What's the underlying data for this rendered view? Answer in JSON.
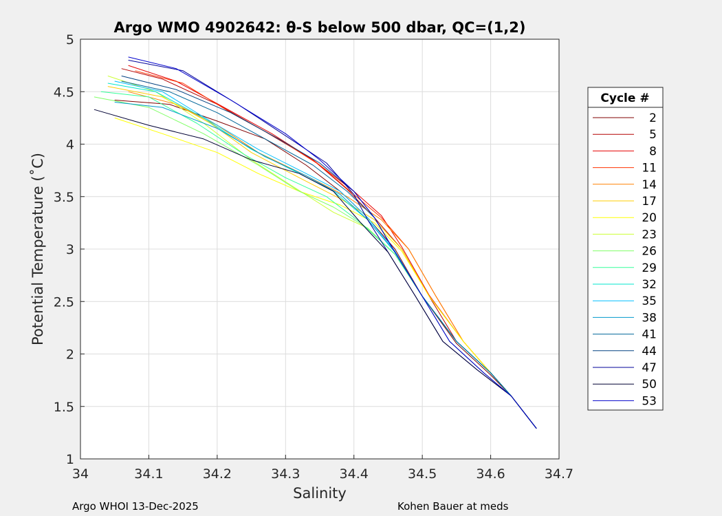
{
  "chart_data": {
    "type": "line",
    "title": "Argo WMO 4902642: θ-S below 500 dbar,  QC=(1,2)",
    "xlabel": "Salinity",
    "ylabel": "Potential Temperature (˚C)",
    "xlim": [
      34,
      34.7
    ],
    "ylim": [
      1,
      5
    ],
    "xticks": [
      "34",
      "34.1",
      "34.2",
      "34.3",
      "34.4",
      "34.5",
      "34.6",
      "34.7"
    ],
    "yticks": [
      "1",
      "1.5",
      "2",
      "2.5",
      "3",
      "3.5",
      "4",
      "4.5",
      "5"
    ],
    "grid": true,
    "legend": {
      "title": "Cycle #",
      "placement": "right",
      "entries": [
        "2",
        "5",
        "8",
        "11",
        "14",
        "17",
        "20",
        "23",
        "26",
        "29",
        "32",
        "35",
        "38",
        "41",
        "44",
        "47",
        "50",
        "53"
      ]
    },
    "series": [
      {
        "name": "2",
        "color": "#800000",
        "points": [
          [
            34.05,
            4.42
          ],
          [
            34.13,
            4.38
          ],
          [
            34.2,
            4.22
          ],
          [
            34.27,
            4.05
          ],
          [
            34.33,
            3.8
          ],
          [
            34.38,
            3.55
          ],
          [
            34.42,
            3.3
          ],
          [
            34.46,
            3.0
          ],
          [
            34.5,
            2.55
          ],
          [
            34.55,
            2.1
          ],
          [
            34.6,
            1.8
          ],
          [
            34.63,
            1.6
          ],
          [
            34.667,
            1.29
          ]
        ]
      },
      {
        "name": "5",
        "color": "#b30000",
        "points": [
          [
            34.06,
            4.72
          ],
          [
            34.12,
            4.62
          ],
          [
            34.2,
            4.38
          ],
          [
            34.27,
            4.12
          ],
          [
            34.34,
            3.85
          ],
          [
            34.39,
            3.57
          ],
          [
            34.43,
            3.3
          ],
          [
            34.47,
            3.0
          ],
          [
            34.51,
            2.55
          ],
          [
            34.55,
            2.12
          ],
          [
            34.6,
            1.82
          ],
          [
            34.63,
            1.6
          ],
          [
            34.667,
            1.29
          ]
        ]
      },
      {
        "name": "8",
        "color": "#e60000",
        "points": [
          [
            34.07,
            4.75
          ],
          [
            34.14,
            4.6
          ],
          [
            34.21,
            4.35
          ],
          [
            34.28,
            4.1
          ],
          [
            34.34,
            3.85
          ],
          [
            34.4,
            3.55
          ],
          [
            34.44,
            3.32
          ],
          [
            34.47,
            3.02
          ],
          [
            34.51,
            2.56
          ],
          [
            34.56,
            2.12
          ],
          [
            34.6,
            1.82
          ],
          [
            34.63,
            1.6
          ],
          [
            34.667,
            1.29
          ]
        ]
      },
      {
        "name": "11",
        "color": "#ff3300",
        "points": [
          [
            34.08,
            4.7
          ],
          [
            34.15,
            4.58
          ],
          [
            34.22,
            4.3
          ],
          [
            34.29,
            4.05
          ],
          [
            34.35,
            3.8
          ],
          [
            34.4,
            3.52
          ],
          [
            34.44,
            3.3
          ],
          [
            34.48,
            3.0
          ],
          [
            34.52,
            2.55
          ],
          [
            34.56,
            2.12
          ],
          [
            34.6,
            1.82
          ],
          [
            34.63,
            1.6
          ],
          [
            34.667,
            1.29
          ]
        ]
      },
      {
        "name": "14",
        "color": "#ff8000",
        "points": [
          [
            34.07,
            4.5
          ],
          [
            34.14,
            4.38
          ],
          [
            34.2,
            4.18
          ],
          [
            34.26,
            3.92
          ],
          [
            34.33,
            3.7
          ],
          [
            34.39,
            3.5
          ],
          [
            34.44,
            3.28
          ],
          [
            34.48,
            3.0
          ],
          [
            34.52,
            2.55
          ],
          [
            34.56,
            2.12
          ],
          [
            34.6,
            1.82
          ],
          [
            34.63,
            1.6
          ],
          [
            34.667,
            1.29
          ]
        ]
      },
      {
        "name": "17",
        "color": "#ffcc00",
        "points": [
          [
            34.04,
            4.55
          ],
          [
            34.12,
            4.45
          ],
          [
            34.19,
            4.2
          ],
          [
            34.25,
            3.92
          ],
          [
            34.32,
            3.68
          ],
          [
            34.38,
            3.48
          ],
          [
            34.43,
            3.28
          ],
          [
            34.47,
            3.0
          ],
          [
            34.51,
            2.55
          ],
          [
            34.56,
            2.12
          ],
          [
            34.6,
            1.82
          ],
          [
            34.63,
            1.6
          ],
          [
            34.667,
            1.29
          ]
        ]
      },
      {
        "name": "20",
        "color": "#ffff00",
        "points": [
          [
            34.05,
            4.25
          ],
          [
            34.12,
            4.1
          ],
          [
            34.2,
            3.92
          ],
          [
            34.26,
            3.72
          ],
          [
            34.32,
            3.55
          ],
          [
            34.38,
            3.42
          ],
          [
            34.43,
            3.25
          ],
          [
            34.47,
            2.98
          ],
          [
            34.51,
            2.55
          ],
          [
            34.56,
            2.12
          ],
          [
            34.6,
            1.82
          ],
          [
            34.63,
            1.6
          ],
          [
            34.667,
            1.29
          ]
        ]
      },
      {
        "name": "23",
        "color": "#ccff33",
        "points": [
          [
            34.04,
            4.65
          ],
          [
            34.11,
            4.5
          ],
          [
            34.18,
            4.2
          ],
          [
            34.25,
            3.85
          ],
          [
            34.31,
            3.6
          ],
          [
            34.37,
            3.35
          ],
          [
            34.42,
            3.2
          ],
          [
            34.46,
            2.95
          ],
          [
            34.5,
            2.55
          ],
          [
            34.55,
            2.12
          ],
          [
            34.6,
            1.82
          ],
          [
            34.63,
            1.6
          ],
          [
            34.667,
            1.29
          ]
        ]
      },
      {
        "name": "26",
        "color": "#80ff66",
        "points": [
          [
            34.02,
            4.45
          ],
          [
            34.1,
            4.35
          ],
          [
            34.18,
            4.1
          ],
          [
            34.26,
            3.8
          ],
          [
            34.32,
            3.55
          ],
          [
            34.37,
            3.4
          ],
          [
            34.42,
            3.2
          ],
          [
            34.46,
            2.95
          ],
          [
            34.5,
            2.55
          ],
          [
            34.55,
            2.12
          ],
          [
            34.6,
            1.82
          ],
          [
            34.63,
            1.6
          ],
          [
            34.667,
            1.29
          ]
        ]
      },
      {
        "name": "29",
        "color": "#33ff99",
        "points": [
          [
            34.03,
            4.5
          ],
          [
            34.1,
            4.45
          ],
          [
            34.17,
            4.2
          ],
          [
            34.24,
            3.9
          ],
          [
            34.3,
            3.68
          ],
          [
            34.36,
            3.5
          ],
          [
            34.41,
            3.25
          ],
          [
            34.46,
            2.95
          ],
          [
            34.5,
            2.55
          ],
          [
            34.55,
            2.12
          ],
          [
            34.6,
            1.82
          ],
          [
            34.63,
            1.6
          ],
          [
            34.667,
            1.29
          ]
        ]
      },
      {
        "name": "32",
        "color": "#00e6cc",
        "points": [
          [
            34.04,
            4.58
          ],
          [
            34.11,
            4.5
          ],
          [
            34.18,
            4.25
          ],
          [
            34.25,
            3.95
          ],
          [
            34.32,
            3.72
          ],
          [
            34.37,
            3.55
          ],
          [
            34.42,
            3.28
          ],
          [
            34.46,
            2.97
          ],
          [
            34.5,
            2.55
          ],
          [
            34.55,
            2.12
          ],
          [
            34.6,
            1.82
          ],
          [
            34.63,
            1.6
          ],
          [
            34.667,
            1.29
          ]
        ]
      },
      {
        "name": "35",
        "color": "#00bfff",
        "points": [
          [
            34.05,
            4.6
          ],
          [
            34.12,
            4.5
          ],
          [
            34.19,
            4.22
          ],
          [
            34.26,
            3.95
          ],
          [
            34.33,
            3.72
          ],
          [
            34.38,
            3.55
          ],
          [
            34.42,
            3.3
          ],
          [
            34.46,
            2.98
          ],
          [
            34.5,
            2.55
          ],
          [
            34.55,
            2.12
          ],
          [
            34.6,
            1.82
          ],
          [
            34.63,
            1.6
          ],
          [
            34.667,
            1.29
          ]
        ]
      },
      {
        "name": "38",
        "color": "#0099cc",
        "points": [
          [
            34.05,
            4.4
          ],
          [
            34.12,
            4.35
          ],
          [
            34.2,
            4.15
          ],
          [
            34.27,
            3.88
          ],
          [
            34.33,
            3.7
          ],
          [
            34.38,
            3.52
          ],
          [
            34.42,
            3.28
          ],
          [
            34.46,
            2.97
          ],
          [
            34.5,
            2.55
          ],
          [
            34.55,
            2.12
          ],
          [
            34.6,
            1.82
          ],
          [
            34.63,
            1.6
          ],
          [
            34.667,
            1.29
          ]
        ]
      },
      {
        "name": "41",
        "color": "#006699",
        "points": [
          [
            34.06,
            4.6
          ],
          [
            34.13,
            4.5
          ],
          [
            34.2,
            4.3
          ],
          [
            34.27,
            4.05
          ],
          [
            34.34,
            3.8
          ],
          [
            34.39,
            3.55
          ],
          [
            34.43,
            3.3
          ],
          [
            34.46,
            2.97
          ],
          [
            34.5,
            2.55
          ],
          [
            34.55,
            2.12
          ],
          [
            34.6,
            1.82
          ],
          [
            34.63,
            1.6
          ],
          [
            34.667,
            1.29
          ]
        ]
      },
      {
        "name": "44",
        "color": "#004080",
        "points": [
          [
            34.06,
            4.65
          ],
          [
            34.14,
            4.52
          ],
          [
            34.22,
            4.3
          ],
          [
            34.29,
            4.05
          ],
          [
            34.35,
            3.82
          ],
          [
            34.4,
            3.55
          ],
          [
            34.43,
            3.3
          ],
          [
            34.46,
            2.97
          ],
          [
            34.5,
            2.55
          ],
          [
            34.54,
            2.12
          ],
          [
            34.59,
            1.82
          ],
          [
            34.63,
            1.6
          ],
          [
            34.667,
            1.29
          ]
        ]
      },
      {
        "name": "47",
        "color": "#000099",
        "points": [
          [
            34.07,
            4.8
          ],
          [
            34.15,
            4.7
          ],
          [
            34.23,
            4.38
          ],
          [
            34.3,
            4.08
          ],
          [
            34.36,
            3.82
          ],
          [
            34.4,
            3.52
          ],
          [
            34.42,
            3.28
          ],
          [
            34.45,
            2.97
          ],
          [
            34.49,
            2.55
          ],
          [
            34.53,
            2.12
          ],
          [
            34.58,
            1.85
          ],
          [
            34.63,
            1.6
          ],
          [
            34.667,
            1.29
          ]
        ]
      },
      {
        "name": "50",
        "color": "#000033",
        "points": [
          [
            34.02,
            4.33
          ],
          [
            34.1,
            4.18
          ],
          [
            34.18,
            4.05
          ],
          [
            34.25,
            3.85
          ],
          [
            34.32,
            3.72
          ],
          [
            34.37,
            3.55
          ],
          [
            34.41,
            3.25
          ],
          [
            34.45,
            2.97
          ],
          [
            34.49,
            2.55
          ],
          [
            34.53,
            2.12
          ],
          [
            34.58,
            1.85
          ],
          [
            34.63,
            1.6
          ],
          [
            34.667,
            1.29
          ]
        ]
      },
      {
        "name": "53",
        "color": "#0000cc",
        "points": [
          [
            34.07,
            4.83
          ],
          [
            34.14,
            4.72
          ],
          [
            34.22,
            4.42
          ],
          [
            34.3,
            4.1
          ],
          [
            34.35,
            3.85
          ],
          [
            34.4,
            3.55
          ],
          [
            34.43,
            3.3
          ],
          [
            34.46,
            2.97
          ],
          [
            34.5,
            2.55
          ],
          [
            34.54,
            2.12
          ],
          [
            34.59,
            1.82
          ],
          [
            34.63,
            1.6
          ],
          [
            34.667,
            1.29
          ]
        ]
      }
    ]
  },
  "footer": {
    "left": "Argo WHOI 13-Dec-2025",
    "right": "Kohen Bauer at meds"
  }
}
